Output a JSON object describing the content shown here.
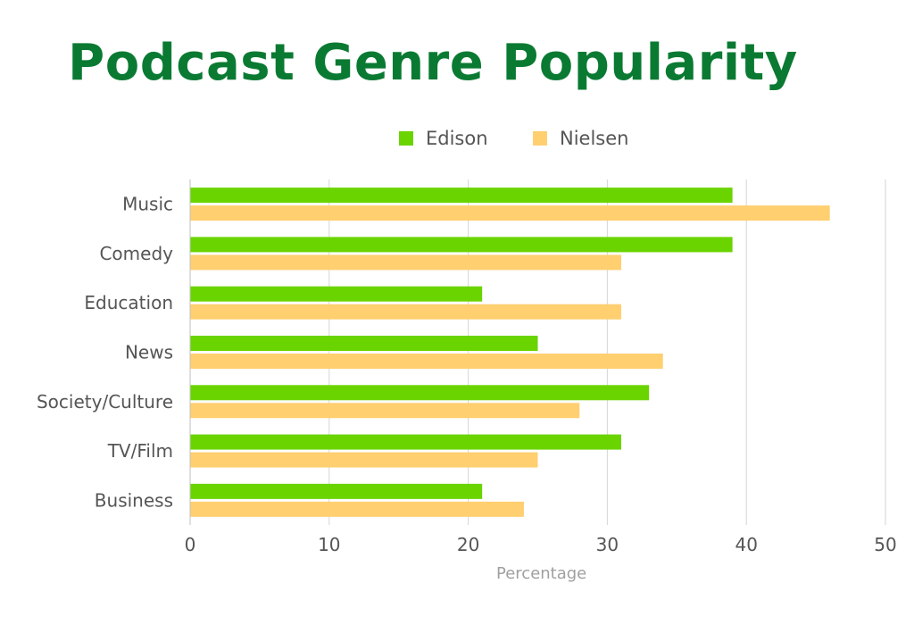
{
  "chart_data": {
    "type": "bar",
    "orientation": "horizontal",
    "title": "Podcast Genre Popularity",
    "xlabel": "Percentage",
    "ylabel": "",
    "categories": [
      "Music",
      "Comedy",
      "Education",
      "News",
      "Society/Culture",
      "TV/Film",
      "Business"
    ],
    "series": [
      {
        "name": "Edison",
        "color": "#6ad400",
        "values": [
          39,
          39,
          21,
          25,
          33,
          31,
          21
        ]
      },
      {
        "name": "Nielsen",
        "color": "#ffcf70",
        "values": [
          46,
          31,
          31,
          34,
          28,
          25,
          24
        ]
      }
    ],
    "xlim": [
      0,
      50
    ],
    "xticks": [
      "0",
      "10",
      "20",
      "30",
      "40",
      "50"
    ],
    "grid": true,
    "legend_position": "top",
    "title_color": "#0a7a32"
  }
}
